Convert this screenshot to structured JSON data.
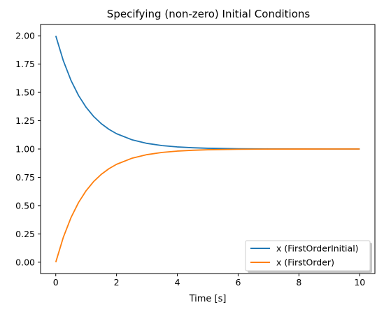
{
  "chart_data": {
    "type": "line",
    "title": "Specifying (non-zero) Initial Conditions",
    "xlabel": "Time [s]",
    "ylabel": "",
    "xlim": [
      -0.5,
      10.5
    ],
    "ylim": [
      -0.1,
      2.1
    ],
    "xticks": [
      0,
      2,
      4,
      6,
      8,
      10
    ],
    "xtick_labels": [
      "0",
      "2",
      "4",
      "6",
      "8",
      "10"
    ],
    "yticks": [
      0.0,
      0.25,
      0.5,
      0.75,
      1.0,
      1.25,
      1.5,
      1.75,
      2.0
    ],
    "ytick_labels": [
      "0.00",
      "0.25",
      "0.50",
      "0.75",
      "1.00",
      "1.25",
      "1.50",
      "1.75",
      "2.00"
    ],
    "grid": false,
    "legend_position": "lower-right",
    "x": [
      0,
      0.25,
      0.5,
      0.75,
      1,
      1.25,
      1.5,
      1.75,
      2,
      2.5,
      3,
      3.5,
      4,
      4.5,
      5,
      6,
      7,
      8,
      9,
      10
    ],
    "series": [
      {
        "name": "x (FirstOrderInitial)",
        "color": "#1f77b4",
        "values": [
          2.0,
          1.7788,
          1.6065,
          1.4724,
          1.3679,
          1.2865,
          1.2231,
          1.1738,
          1.1353,
          1.0821,
          1.0498,
          1.0302,
          1.0183,
          1.0111,
          1.0067,
          1.0025,
          1.0009,
          1.0003,
          1.0001,
          1.0
        ]
      },
      {
        "name": "x (FirstOrder)",
        "color": "#ff7f0e",
        "values": [
          0.0,
          0.2212,
          0.3935,
          0.5276,
          0.6321,
          0.7135,
          0.7769,
          0.8262,
          0.8647,
          0.9179,
          0.9502,
          0.9698,
          0.9817,
          0.9889,
          0.9933,
          0.9975,
          0.9991,
          0.9997,
          0.9999,
          1.0
        ]
      }
    ]
  }
}
